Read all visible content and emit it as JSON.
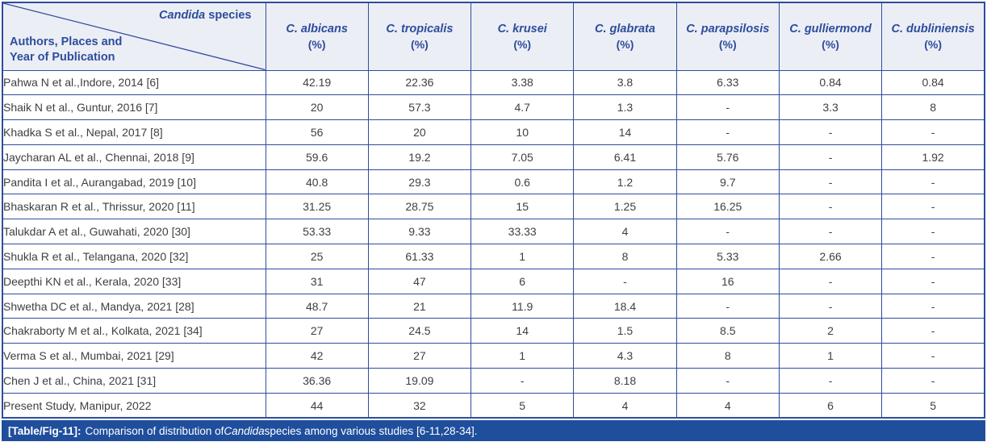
{
  "colors": {
    "accent_blue": "#2d4d9b",
    "header_background": "#eceef6",
    "caption_background": "#1f4e9c",
    "body_text": "#3f3f3f",
    "caption_text": "#ffffff"
  },
  "table": {
    "corner": {
      "species_label_italic": "Candida",
      "species_label_rest": " species",
      "row_header_line1": "Authors, Places and",
      "row_header_line2": "Year of Publication"
    },
    "columns": [
      {
        "name": "C. albicans",
        "unit": "(%)"
      },
      {
        "name": "C. tropicalis",
        "unit": "(%)"
      },
      {
        "name": "C. krusei",
        "unit": "(%)"
      },
      {
        "name": "C. glabrata",
        "unit": "(%)"
      },
      {
        "name": "C. parapsilosis",
        "unit": "(%)"
      },
      {
        "name": "C. gulliermond",
        "unit": "(%)"
      },
      {
        "name": "C. dubliniensis",
        "unit": "(%)"
      }
    ],
    "rows": [
      {
        "study": "Pahwa N et al.,Indore, 2014 [6]",
        "values": [
          "42.19",
          "22.36",
          "3.38",
          "3.8",
          "6.33",
          "0.84",
          "0.84"
        ]
      },
      {
        "study": "Shaik N et al., Guntur, 2016 [7]",
        "values": [
          "20",
          "57.3",
          "4.7",
          "1.3",
          "-",
          "3.3",
          "8"
        ]
      },
      {
        "study": "Khadka S et al., Nepal, 2017 [8]",
        "values": [
          "56",
          "20",
          "10",
          "14",
          "-",
          "-",
          "-"
        ]
      },
      {
        "study": "Jaycharan AL et al., Chennai, 2018 [9]",
        "values": [
          "59.6",
          "19.2",
          "7.05",
          "6.41",
          "5.76",
          "-",
          "1.92"
        ]
      },
      {
        "study": "Pandita I et al., Aurangabad, 2019 [10]",
        "values": [
          "40.8",
          "29.3",
          "0.6",
          "1.2",
          "9.7",
          "-",
          "-"
        ]
      },
      {
        "study": "Bhaskaran R et al., Thrissur, 2020 [11]",
        "values": [
          "31.25",
          "28.75",
          "15",
          "1.25",
          "16.25",
          "-",
          "-"
        ]
      },
      {
        "study": "Talukdar A et al., Guwahati, 2020 [30]",
        "values": [
          "53.33",
          "9.33",
          "33.33",
          "4",
          "-",
          "-",
          "-"
        ]
      },
      {
        "study": "Shukla R et al., Telangana, 2020 [32]",
        "values": [
          "25",
          "61.33",
          "1",
          "8",
          "5.33",
          "2.66",
          "-"
        ]
      },
      {
        "study": "Deepthi KN et al., Kerala, 2020 [33]",
        "values": [
          "31",
          "47",
          "6",
          "-",
          "16",
          "-",
          "-"
        ]
      },
      {
        "study": "Shwetha DC et al., Mandya, 2021 [28]",
        "values": [
          "48.7",
          "21",
          "11.9",
          "18.4",
          "-",
          "-",
          "-"
        ]
      },
      {
        "study": "Chakraborty M et al., Kolkata, 2021 [34]",
        "values": [
          "27",
          "24.5",
          "14",
          "1.5",
          "8.5",
          "2",
          "-"
        ]
      },
      {
        "study": "Verma S et al., Mumbai, 2021 [29]",
        "values": [
          "42",
          "27",
          "1",
          "4.3",
          "8",
          "1",
          "-"
        ]
      },
      {
        "study": "Chen J et al., China, 2021 [31]",
        "values": [
          "36.36",
          "19.09",
          "-",
          "8.18",
          "-",
          "-",
          "-"
        ]
      },
      {
        "study": "Present Study, Manipur, 2022",
        "values": [
          "44",
          "32",
          "5",
          "4",
          "4",
          "6",
          "5"
        ]
      }
    ]
  },
  "caption": {
    "label": "[Table/Fig-11]:",
    "text_before_italic": "Comparison of distribution of ",
    "italic_word": "Candida",
    "text_after_italic": " species among various studies [6-11,28-34]."
  }
}
